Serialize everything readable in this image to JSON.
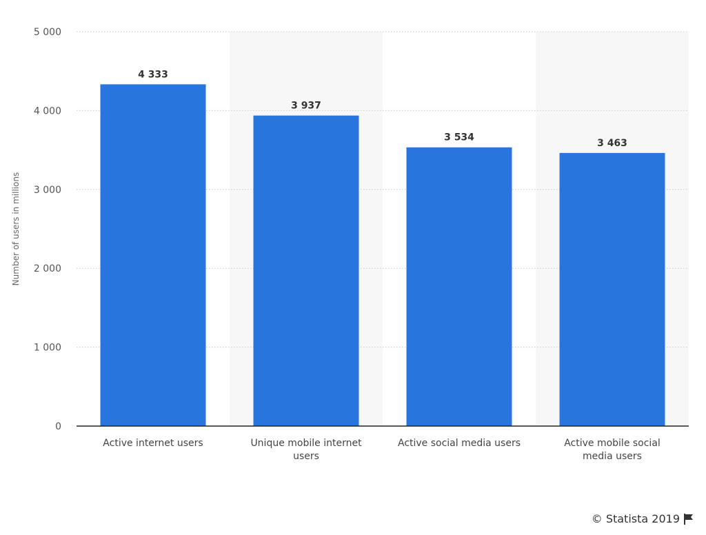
{
  "chart_data": {
    "type": "bar",
    "categories": [
      [
        "Active internet users"
      ],
      [
        "Unique mobile internet",
        "users"
      ],
      [
        "Active social media users"
      ],
      [
        "Active mobile social",
        "media users"
      ]
    ],
    "values": [
      4333,
      3937,
      3534,
      3463
    ],
    "value_labels": [
      "4 333",
      "3 937",
      "3 534",
      "3 463"
    ],
    "ylabel": "Number of users in millions",
    "ylim": [
      0,
      5000
    ],
    "yticks": [
      0,
      1000,
      2000,
      3000,
      4000,
      5000
    ],
    "ytick_labels": [
      "0",
      "1 000",
      "2 000",
      "3 000",
      "4 000",
      "5 000"
    ],
    "grid": true,
    "legend": "none",
    "colors": {
      "bar": "#2876dd",
      "band": "#f7f7f7",
      "grid": "#c8c8c8",
      "axis": "#222222"
    }
  },
  "footer": {
    "copyright": "© Statista 2019",
    "flag_icon": "flag-icon"
  }
}
